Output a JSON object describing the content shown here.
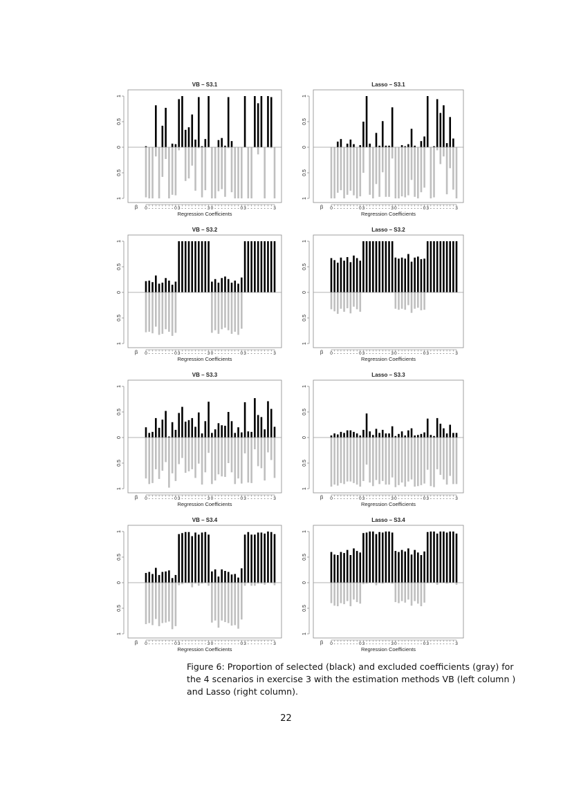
{
  "figure": {
    "caption": "Figure 6: Proportion of selected (black) and excluded coefficients (gray) for the 4 scenarios in exercise 3 with the estimation methods VB (left column ) and Lasso (right column).",
    "page_number": "22"
  },
  "chart_data": [
    {
      "type": "bar",
      "title": "VB – S3.1",
      "xlabel": "Regression Coefficients",
      "beta_label": "β",
      "ylim": [
        -1,
        1
      ],
      "yticks": [
        "1",
        "0.5",
        "0",
        "0.5",
        "1"
      ],
      "xticks": [
        "0",
        "-",
        "-",
        "-",
        "-",
        "-",
        "-",
        "-",
        "-",
        "0",
        "3",
        "-",
        "-",
        "-",
        "-",
        "-",
        "-",
        "-",
        "-",
        "3",
        "0",
        "-",
        "-",
        "-",
        "-",
        "-",
        "-",
        "-",
        "-",
        "0",
        "3",
        "-",
        "-",
        "-",
        "-",
        "-",
        "-",
        "-",
        "-",
        "3"
      ],
      "colors": {
        "selected": "#000000",
        "excluded": "#bfbfbf"
      },
      "selected": [
        0.02,
        0,
        0,
        0.82,
        0,
        0.42,
        0.77,
        0,
        0.07,
        0.06,
        0.94,
        1.0,
        0.34,
        0.39,
        0.64,
        0.15,
        0.98,
        0.02,
        0.16,
        1.0,
        0,
        0,
        0.14,
        0.18,
        0.03,
        0.98,
        0.12,
        0,
        0,
        0,
        1.0,
        0,
        0,
        1.0,
        0.86,
        1.0,
        0,
        1.0,
        0.98,
        0
      ],
      "excluded": [
        0.98,
        1,
        1,
        0.18,
        1,
        0.58,
        0.23,
        1,
        0.93,
        0.94,
        0.06,
        0,
        0.66,
        0.61,
        0.36,
        0.85,
        0.02,
        0.98,
        0.84,
        0,
        1,
        1,
        0.86,
        0.82,
        0.97,
        0.02,
        0.88,
        1,
        1,
        1,
        0,
        1,
        1,
        0,
        0.14,
        0,
        1,
        0,
        0.02,
        1
      ]
    },
    {
      "type": "bar",
      "title": "Lasso – S3.1",
      "xlabel": "Regression Coefficients",
      "beta_label": "β",
      "ylim": [
        -1,
        1
      ],
      "yticks": [
        "1",
        "0.5",
        "0",
        "0.5",
        "1"
      ],
      "xticks": [
        "0",
        "-",
        "-",
        "-",
        "-",
        "-",
        "-",
        "-",
        "-",
        "0",
        "3",
        "-",
        "-",
        "-",
        "-",
        "-",
        "-",
        "-",
        "-",
        "3",
        "0",
        "-",
        "-",
        "-",
        "-",
        "-",
        "-",
        "-",
        "-",
        "0",
        "3",
        "-",
        "-",
        "-",
        "-",
        "-",
        "-",
        "-",
        "-",
        "3"
      ],
      "colors": {
        "selected": "#000000",
        "excluded": "#bfbfbf"
      },
      "selected": [
        0,
        0,
        0.11,
        0.16,
        0,
        0.07,
        0.15,
        0.06,
        0,
        0.04,
        0.5,
        1.0,
        0.07,
        0,
        0.28,
        0.03,
        0.51,
        0.03,
        0.03,
        0.78,
        0,
        0,
        0.04,
        0.02,
        0.06,
        0.36,
        0.03,
        0,
        0.12,
        0.21,
        1.0,
        0,
        0.02,
        0.94,
        0.67,
        0.82,
        0.08,
        0.59,
        0.17,
        0
      ],
      "excluded": [
        1,
        1,
        0.89,
        0.84,
        1,
        0.93,
        0.85,
        0.94,
        1,
        0.96,
        0.5,
        0,
        0.93,
        1,
        0.72,
        0.97,
        0.49,
        0.97,
        0.97,
        0.22,
        1,
        1,
        0.96,
        0.98,
        0.94,
        0.64,
        0.97,
        1,
        0.88,
        0.79,
        0,
        1,
        0.98,
        0.06,
        0.33,
        0.18,
        0.92,
        0.41,
        0.83,
        1
      ]
    },
    {
      "type": "bar",
      "title": "VB – S3.2",
      "xlabel": "Regression Coefficients",
      "beta_label": "β",
      "ylim": [
        -1,
        1
      ],
      "yticks": [
        "1",
        "0.5",
        "0",
        "0.5",
        "1"
      ],
      "xticks": [
        "0",
        "-",
        "-",
        "-",
        "-",
        "-",
        "-",
        "-",
        "-",
        "0",
        "3",
        "-",
        "-",
        "-",
        "-",
        "-",
        "-",
        "-",
        "-",
        "3",
        "0",
        "-",
        "-",
        "-",
        "-",
        "-",
        "-",
        "-",
        "-",
        "0",
        "3",
        "-",
        "-",
        "-",
        "-",
        "-",
        "-",
        "-",
        "-",
        "3"
      ],
      "colors": {
        "selected": "#000000",
        "excluded": "#bfbfbf"
      },
      "selected": [
        0.22,
        0.23,
        0.2,
        0.33,
        0.17,
        0.19,
        0.28,
        0.23,
        0.15,
        0.21,
        1,
        1,
        1,
        1,
        1,
        1,
        1,
        1,
        1,
        1,
        0.21,
        0.26,
        0.19,
        0.28,
        0.31,
        0.26,
        0.19,
        0.23,
        0.17,
        0.29,
        1,
        1,
        1,
        1,
        1,
        1,
        1,
        1,
        1,
        1
      ],
      "excluded": [
        0.78,
        0.77,
        0.8,
        0.67,
        0.83,
        0.81,
        0.72,
        0.77,
        0.85,
        0.79,
        0,
        0,
        0,
        0,
        0,
        0,
        0,
        0,
        0,
        0,
        0.79,
        0.74,
        0.81,
        0.72,
        0.69,
        0.74,
        0.81,
        0.77,
        0.83,
        0.71,
        0,
        0,
        0,
        0,
        0,
        0,
        0,
        0,
        0,
        0
      ]
    },
    {
      "type": "bar",
      "title": "Lasso – S3.2",
      "xlabel": "Regression Coefficients",
      "beta_label": "β",
      "ylim": [
        -1,
        1
      ],
      "yticks": [
        "1",
        "0.5",
        "0",
        "0.5",
        "1"
      ],
      "xticks": [
        "0",
        "-",
        "-",
        "-",
        "-",
        "-",
        "-",
        "-",
        "-",
        "0",
        "3",
        "-",
        "-",
        "-",
        "-",
        "-",
        "-",
        "-",
        "-",
        "3",
        "0",
        "-",
        "-",
        "-",
        "-",
        "-",
        "-",
        "-",
        "-",
        "0",
        "3",
        "-",
        "-",
        "-",
        "-",
        "-",
        "-",
        "-",
        "-",
        "3"
      ],
      "colors": {
        "selected": "#000000",
        "excluded": "#bfbfbf"
      },
      "selected": [
        0.67,
        0.63,
        0.58,
        0.68,
        0.62,
        0.69,
        0.59,
        0.72,
        0.67,
        0.62,
        1,
        1,
        1,
        1,
        1,
        1,
        1,
        1,
        1,
        1,
        0.68,
        0.66,
        0.68,
        0.66,
        0.75,
        0.6,
        0.68,
        0.7,
        0.65,
        0.66,
        1,
        1,
        1,
        1,
        1,
        1,
        1,
        1,
        1,
        1
      ],
      "excluded": [
        0.33,
        0.37,
        0.42,
        0.32,
        0.38,
        0.31,
        0.41,
        0.28,
        0.33,
        0.38,
        0,
        0,
        0,
        0,
        0,
        0,
        0,
        0,
        0,
        0,
        0.32,
        0.34,
        0.32,
        0.34,
        0.25,
        0.4,
        0.32,
        0.3,
        0.35,
        0.34,
        0,
        0,
        0,
        0,
        0,
        0,
        0,
        0,
        0,
        0
      ]
    },
    {
      "type": "bar",
      "title": "VB – S3.3",
      "xlabel": "Regression Coefficients",
      "beta_label": "β",
      "ylim": [
        -1,
        1
      ],
      "yticks": [
        "1",
        "0.5",
        "0",
        "0.5",
        "1"
      ],
      "xticks": [
        "0",
        "-",
        "-",
        "-",
        "-",
        "-",
        "-",
        "-",
        "-",
        "0",
        "3",
        "-",
        "-",
        "-",
        "-",
        "-",
        "-",
        "-",
        "-",
        "3",
        "0",
        "-",
        "-",
        "-",
        "-",
        "-",
        "-",
        "-",
        "-",
        "0",
        "3",
        "-",
        "-",
        "-",
        "-",
        "-",
        "-",
        "-",
        "-",
        "3"
      ],
      "colors": {
        "selected": "#000000",
        "excluded": "#bfbfbf"
      },
      "selected": [
        0.2,
        0.09,
        0.11,
        0.38,
        0.19,
        0.35,
        0.52,
        0.02,
        0.3,
        0.15,
        0.48,
        0.6,
        0.31,
        0.34,
        0.38,
        0.21,
        0.49,
        0.08,
        0.32,
        0.7,
        0.09,
        0.16,
        0.28,
        0.24,
        0.23,
        0.5,
        0.32,
        0.09,
        0.2,
        0.1,
        0.69,
        0.12,
        0.11,
        0.77,
        0.44,
        0.4,
        0.16,
        0.71,
        0.56,
        0.21
      ],
      "excluded": [
        0.8,
        0.91,
        0.89,
        0.62,
        0.81,
        0.65,
        0.48,
        0.98,
        0.7,
        0.85,
        0.52,
        0.4,
        0.69,
        0.66,
        0.62,
        0.79,
        0.51,
        0.92,
        0.68,
        0.3,
        0.91,
        0.84,
        0.72,
        0.76,
        0.77,
        0.5,
        0.68,
        0.91,
        0.8,
        0.9,
        0.31,
        0.88,
        0.89,
        0.23,
        0.56,
        0.6,
        0.84,
        0.29,
        0.44,
        0.79
      ]
    },
    {
      "type": "bar",
      "title": "Lasso – S3.3",
      "xlabel": "Regression Coefficients",
      "beta_label": "β",
      "ylim": [
        -1,
        1
      ],
      "yticks": [
        "1",
        "0.5",
        "0",
        "0.5",
        "1"
      ],
      "xticks": [
        "0",
        "-",
        "-",
        "-",
        "-",
        "-",
        "-",
        "-",
        "-",
        "0",
        "3",
        "-",
        "-",
        "-",
        "-",
        "-",
        "-",
        "-",
        "-",
        "3",
        "0",
        "-",
        "-",
        "-",
        "-",
        "-",
        "-",
        "-",
        "-",
        "0",
        "3",
        "-",
        "-",
        "-",
        "-",
        "-",
        "-",
        "-",
        "-",
        "3"
      ],
      "colors": {
        "selected": "#000000",
        "excluded": "#bfbfbf"
      },
      "selected": [
        0.04,
        0.08,
        0.06,
        0.11,
        0.09,
        0.14,
        0.14,
        0.11,
        0.08,
        0.04,
        0.15,
        0.47,
        0.12,
        0.05,
        0.17,
        0.09,
        0.15,
        0.08,
        0.08,
        0.22,
        0.03,
        0.07,
        0.12,
        0.04,
        0.14,
        0.18,
        0.04,
        0.05,
        0.07,
        0.1,
        0.37,
        0.05,
        0.03,
        0.38,
        0.27,
        0.18,
        0.08,
        0.25,
        0.09,
        0.09
      ],
      "excluded": [
        0.96,
        0.92,
        0.94,
        0.89,
        0.91,
        0.86,
        0.86,
        0.89,
        0.92,
        0.96,
        0.85,
        0.53,
        0.88,
        0.95,
        0.83,
        0.91,
        0.85,
        0.92,
        0.92,
        0.78,
        0.97,
        0.93,
        0.88,
        0.96,
        0.86,
        0.82,
        0.96,
        0.95,
        0.93,
        0.9,
        0.63,
        0.95,
        0.97,
        0.62,
        0.73,
        0.82,
        0.92,
        0.75,
        0.91,
        0.91
      ]
    },
    {
      "type": "bar",
      "title": "VB – S3.4",
      "xlabel": "Regression Coefficients",
      "beta_label": "β",
      "ylim": [
        -1,
        1
      ],
      "yticks": [
        "1",
        "0.5",
        "0",
        "0.5",
        "1"
      ],
      "xticks": [
        "0",
        "-",
        "-",
        "-",
        "-",
        "-",
        "-",
        "-",
        "-",
        "0",
        "3",
        "-",
        "-",
        "-",
        "-",
        "-",
        "-",
        "-",
        "-",
        "3",
        "0",
        "-",
        "-",
        "-",
        "-",
        "-",
        "-",
        "-",
        "-",
        "0",
        "3",
        "-",
        "-",
        "-",
        "-",
        "-",
        "-",
        "-",
        "-",
        "3"
      ],
      "colors": {
        "selected": "#000000",
        "excluded": "#bfbfbf"
      },
      "selected": [
        0.19,
        0.21,
        0.17,
        0.29,
        0.15,
        0.21,
        0.22,
        0.24,
        0.09,
        0.15,
        0.95,
        0.97,
        0.99,
        0.99,
        0.91,
        0.98,
        0.94,
        0.98,
        0.99,
        0.94,
        0.22,
        0.26,
        0.12,
        0.26,
        0.23,
        0.21,
        0.16,
        0.17,
        0.1,
        0.28,
        0.94,
        0.99,
        0.94,
        0.94,
        0.98,
        0.98,
        0.96,
        1.0,
        0.99,
        0.95
      ],
      "excluded": [
        0.81,
        0.79,
        0.83,
        0.71,
        0.85,
        0.79,
        0.78,
        0.76,
        0.91,
        0.85,
        0.05,
        0.03,
        0.01,
        0.01,
        0.09,
        0.02,
        0.06,
        0.02,
        0.01,
        0.06,
        0.78,
        0.74,
        0.88,
        0.74,
        0.77,
        0.79,
        0.84,
        0.83,
        0.9,
        0.72,
        0.06,
        0.01,
        0.06,
        0.06,
        0.02,
        0.02,
        0.04,
        0,
        0.01,
        0.05
      ]
    },
    {
      "type": "bar",
      "title": "Lasso – S3.4",
      "xlabel": "Regression Coefficients",
      "beta_label": "β",
      "ylim": [
        -1,
        1
      ],
      "yticks": [
        "1",
        "0.5",
        "0",
        "0.5",
        "1"
      ],
      "xticks": [
        "0",
        "-",
        "-",
        "-",
        "-",
        "-",
        "-",
        "-",
        "-",
        "0",
        "3",
        "-",
        "-",
        "-",
        "-",
        "-",
        "-",
        "-",
        "-",
        "3",
        "0",
        "-",
        "-",
        "-",
        "-",
        "-",
        "-",
        "-",
        "-",
        "0",
        "3",
        "-",
        "-",
        "-",
        "-",
        "-",
        "-",
        "-",
        "-",
        "3"
      ],
      "colors": {
        "selected": "#000000",
        "excluded": "#bfbfbf"
      },
      "selected": [
        0.6,
        0.55,
        0.54,
        0.6,
        0.58,
        0.64,
        0.54,
        0.67,
        0.62,
        0.59,
        0.97,
        0.98,
        1.0,
        1.0,
        0.95,
        0.99,
        0.98,
        1.0,
        1.0,
        0.98,
        0.62,
        0.6,
        0.64,
        0.61,
        0.67,
        0.55,
        0.64,
        0.59,
        0.54,
        0.61,
        0.99,
        1.0,
        1.0,
        0.96,
        1.0,
        1.0,
        0.98,
        1.0,
        1.0,
        0.96
      ],
      "excluded": [
        0.4,
        0.45,
        0.46,
        0.4,
        0.42,
        0.36,
        0.46,
        0.33,
        0.38,
        0.41,
        0.03,
        0.02,
        0,
        0,
        0.05,
        0.01,
        0.02,
        0,
        0,
        0.02,
        0.38,
        0.4,
        0.36,
        0.39,
        0.33,
        0.45,
        0.36,
        0.41,
        0.46,
        0.39,
        0.01,
        0,
        0,
        0.04,
        0,
        0,
        0.02,
        0,
        0,
        0.04
      ]
    }
  ]
}
